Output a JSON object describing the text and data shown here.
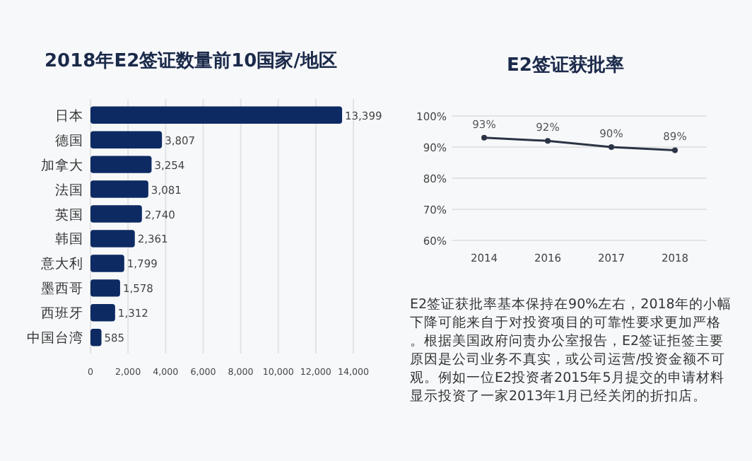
{
  "chart_data": [
    {
      "type": "bar",
      "title": "2018年E2签证数量前10国家/地区",
      "orientation": "horizontal",
      "categories": [
        "日本",
        "德国",
        "加拿大",
        "法国",
        "英国",
        "韩国",
        "意大利",
        "墨西哥",
        "西班牙",
        "中国台湾"
      ],
      "values": [
        13399,
        3807,
        3254,
        3081,
        2740,
        2361,
        1799,
        1578,
        1312,
        585
      ],
      "value_labels": [
        "13,399",
        "3,807",
        "3,254",
        "3,081",
        "2,740",
        "2,361",
        "1,799",
        "1,578",
        "1,312",
        "585"
      ],
      "color": "#0d2a63",
      "xlim": [
        0,
        14000
      ],
      "xticks": [
        0,
        {
          "value": 2000,
          "label": "2,000"
        },
        {
          "value": 4000,
          "label": "4,000"
        },
        {
          "value": 6000,
          "label": "6,000"
        },
        {
          "value": 8000,
          "label": "8,000"
        },
        {
          "value": 10000,
          "label": "10,000"
        },
        {
          "value": 12000,
          "label": "12,000"
        },
        {
          "value": 14000,
          "label": "14,000"
        }
      ],
      "grid": "x"
    },
    {
      "type": "line",
      "title": "E2签证获批率",
      "categories": [
        "2014",
        "2016",
        "2017",
        "2018"
      ],
      "values": [
        93,
        92,
        90,
        89
      ],
      "value_labels": [
        "93%",
        "92%",
        "90%",
        "89%"
      ],
      "color": "#2b3445",
      "marker": "circle",
      "line_style": "solid",
      "ylim": [
        60,
        100
      ],
      "yticks": [
        {
          "value": 60,
          "label": "60%"
        },
        {
          "value": 70,
          "label": "70%"
        },
        {
          "value": 80,
          "label": "80%"
        },
        {
          "value": 90,
          "label": "90%"
        },
        {
          "value": 100,
          "label": "100%"
        }
      ],
      "grid": "y",
      "annotations": [
        "E2签证获批率基本保持在90%左右，2018年的小幅下降可能来自于对投资项目的可靠性要求更加严格。根据美国政府问责办公室报告，E2签证拒签主要原因是公司业务不真实，或公司运营/投资金额不可观。例如一位E2投资者2015年5月提交的申请材料显示投资了一家2013年1月已经关闭的折扣店。"
      ]
    }
  ]
}
